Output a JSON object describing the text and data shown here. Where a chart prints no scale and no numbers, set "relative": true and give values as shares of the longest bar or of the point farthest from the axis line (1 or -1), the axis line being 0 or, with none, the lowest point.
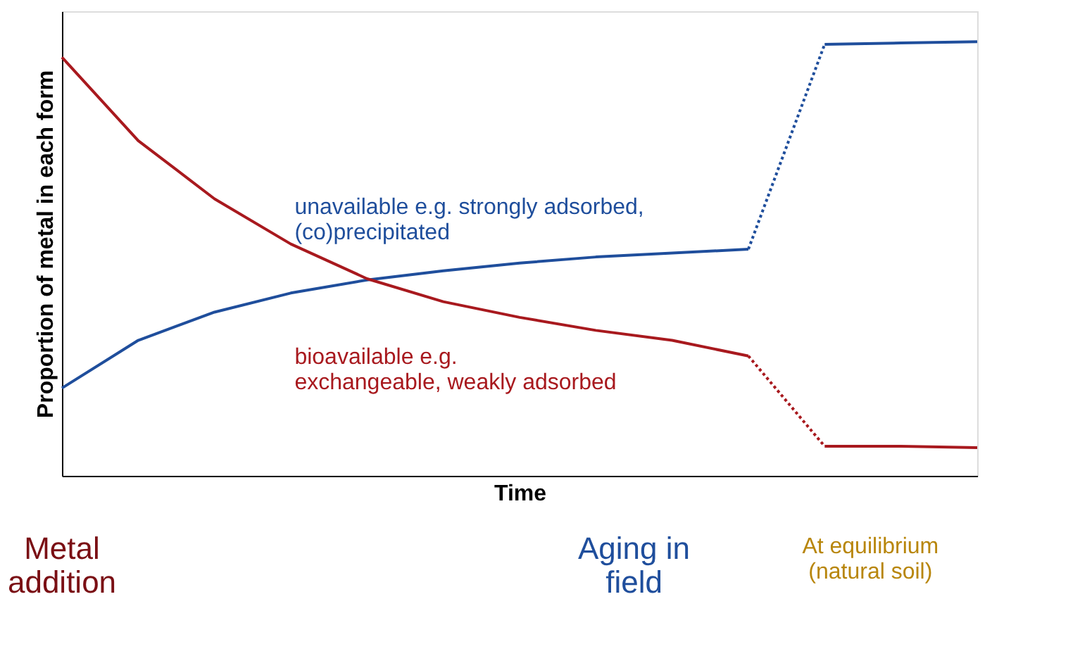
{
  "chart_data": {
    "type": "line",
    "relative": true,
    "xlabel": "Time",
    "ylabel": "Proportion of metal in each form",
    "categories": [
      null,
      null,
      null,
      null,
      null,
      null,
      null,
      null,
      null,
      null,
      null,
      null,
      null
    ],
    "series": [
      {
        "name": "unavailable e.g. strongly adsorbed,\n(co)precipitated",
        "color": "#1f4e9c",
        "line_style": "solid",
        "values": [
          0.202,
          0.312,
          0.377,
          0.421,
          0.451,
          0.472,
          0.49,
          0.504,
          0.513,
          0.522,
          null,
          null,
          null
        ]
      },
      {
        "color": "#1f4e9c",
        "line_style": "dotted",
        "values": [
          null,
          null,
          null,
          null,
          null,
          null,
          null,
          null,
          null,
          0.522,
          0.994,
          null,
          null
        ]
      },
      {
        "color": "#1f4e9c",
        "line_style": "solid",
        "values": [
          null,
          null,
          null,
          null,
          null,
          null,
          null,
          null,
          null,
          null,
          0.994,
          0.997,
          1
        ]
      },
      {
        "name": "bioavailable e.g.\nexchangeable, weakly adsorbed",
        "color": "#a8191e",
        "line_style": "solid",
        "values": [
          0.964,
          0.772,
          0.638,
          0.534,
          0.454,
          0.401,
          0.365,
          0.335,
          0.312,
          0.276,
          null,
          null,
          null
        ]
      },
      {
        "color": "#a8191e",
        "line_style": "dotted",
        "values": [
          null,
          null,
          null,
          null,
          null,
          null,
          null,
          null,
          null,
          0.276,
          0.068,
          null,
          null
        ]
      },
      {
        "color": "#a8191e",
        "line_style": "solid",
        "values": [
          null,
          null,
          null,
          null,
          null,
          null,
          null,
          null,
          null,
          null,
          0.068,
          0.068,
          0.065
        ]
      }
    ],
    "annotations": [
      "Metal\naddition",
      "Aging in\nfield",
      "At equilibrium\n(natural soil)"
    ],
    "grid": false,
    "legend": false,
    "tick_labels": false
  }
}
